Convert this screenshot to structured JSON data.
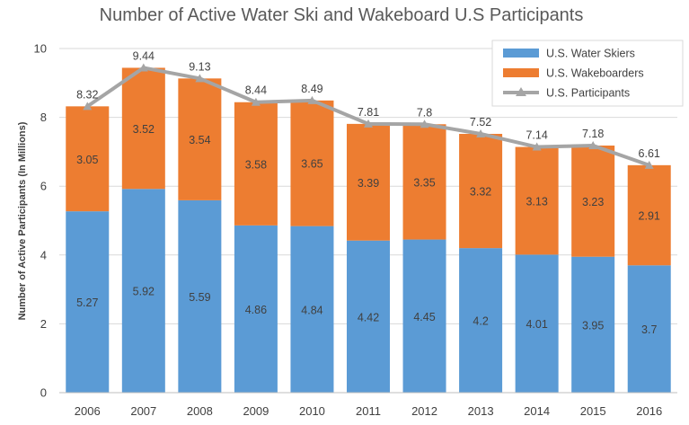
{
  "chart_data": {
    "type": "bar",
    "stacked": true,
    "title": "Number of Active Water Ski and Wakeboard U.S Participants",
    "ylabel": "Number of Active Participants (In Millions)",
    "xlabel": "",
    "ylim": [
      0,
      10
    ],
    "yticks": [
      "0",
      "2",
      "4",
      "6",
      "8",
      "10"
    ],
    "grid": true,
    "legend_position": "top-right",
    "categories": [
      "2006",
      "2007",
      "2008",
      "2009",
      "2010",
      "2011",
      "2012",
      "2013",
      "2014",
      "2015",
      "2016"
    ],
    "series": [
      {
        "name": "U.S. Water Skiers",
        "type": "bar",
        "color": "#5B9BD5",
        "values": [
          5.27,
          5.92,
          5.59,
          4.86,
          4.84,
          4.42,
          4.45,
          4.2,
          4.01,
          3.95,
          3.7
        ],
        "labels": [
          "5.27",
          "5.92",
          "5.59",
          "4.86",
          "4.84",
          "4.42",
          "4.45",
          "4.2",
          "4.01",
          "3.95",
          "3.7"
        ]
      },
      {
        "name": "U.S. Wakeboarders",
        "type": "bar",
        "color": "#ED7D31",
        "values": [
          3.05,
          3.52,
          3.54,
          3.58,
          3.65,
          3.39,
          3.35,
          3.32,
          3.13,
          3.23,
          2.91
        ],
        "labels": [
          "3.05",
          "3.52",
          "3.54",
          "3.58",
          "3.65",
          "3.39",
          "3.35",
          "3.32",
          "3.13",
          "3.23",
          "2.91"
        ]
      },
      {
        "name": "U.S. Participants",
        "type": "line",
        "marker": "triangle",
        "color": "#A5A5A5",
        "values": [
          8.32,
          9.44,
          9.13,
          8.44,
          8.49,
          7.81,
          7.8,
          7.52,
          7.14,
          7.18,
          6.61
        ],
        "labels": [
          "8.32",
          "9.44",
          "9.13",
          "8.44",
          "8.49",
          "7.81",
          "7.8",
          "7.52",
          "7.14",
          "7.18",
          "6.61"
        ]
      }
    ]
  }
}
